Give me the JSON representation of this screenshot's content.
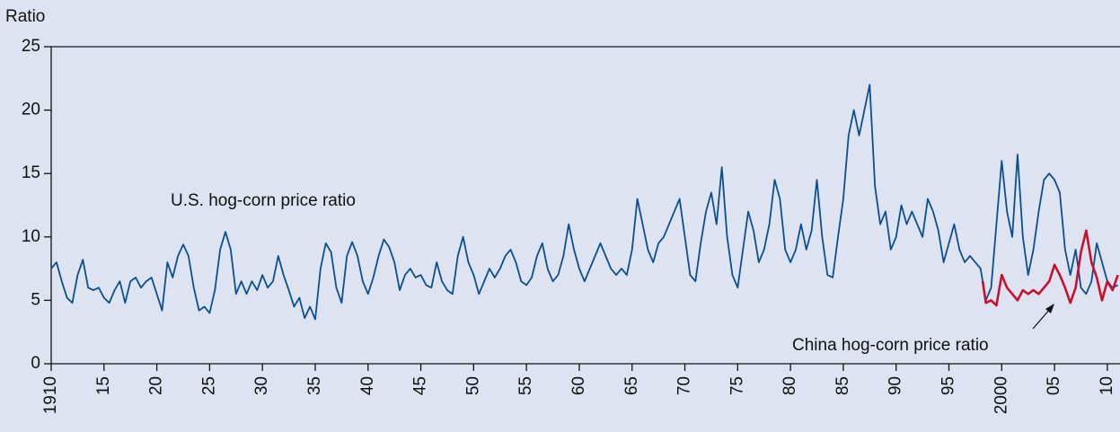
{
  "chart_data": {
    "type": "line",
    "y_label": "Ratio",
    "annotations": [
      "U.S. hog-corn price ratio",
      "China hog-corn price ratio"
    ],
    "xlim": [
      1910,
      2011.2
    ],
    "ylim": [
      0,
      25
    ],
    "yticks": [
      0,
      5,
      10,
      15,
      20,
      25
    ],
    "xticks": [
      1910,
      {
        "value": 1915,
        "label": "15"
      },
      {
        "value": 1920,
        "label": "20"
      },
      {
        "value": 1925,
        "label": "25"
      },
      {
        "value": 1930,
        "label": "30"
      },
      {
        "value": 1935,
        "label": "35"
      },
      {
        "value": 1940,
        "label": "40"
      },
      {
        "value": 1945,
        "label": "45"
      },
      {
        "value": 1950,
        "label": "50"
      },
      {
        "value": 1955,
        "label": "55"
      },
      {
        "value": 1960,
        "label": "60"
      },
      {
        "value": 1965,
        "label": "65"
      },
      {
        "value": 1970,
        "label": "70"
      },
      {
        "value": 1975,
        "label": "75"
      },
      {
        "value": 1980,
        "label": "80"
      },
      {
        "value": 1985,
        "label": "85"
      },
      {
        "value": 1990,
        "label": "90"
      },
      {
        "value": 1995,
        "label": "95"
      },
      2000,
      {
        "value": 2005,
        "label": "05"
      },
      {
        "value": 2010,
        "label": "10"
      }
    ],
    "grid": false,
    "series": [
      {
        "name": "U.S. hog-corn price ratio",
        "color": "#0b4f91",
        "x": [
          1910,
          1910.5,
          1911,
          1911.5,
          1912,
          1912.5,
          1913,
          1913.5,
          1914,
          1914.5,
          1915,
          1915.5,
          1916,
          1916.5,
          1917,
          1917.5,
          1918,
          1918.5,
          1919,
          1919.5,
          1920,
          1920.5,
          1921,
          1921.5,
          1922,
          1922.5,
          1923,
          1923.5,
          1924,
          1924.5,
          1925,
          1925.5,
          1926,
          1926.5,
          1927,
          1927.5,
          1928,
          1928.5,
          1929,
          1929.5,
          1930,
          1930.5,
          1931,
          1931.5,
          1932,
          1932.5,
          1933,
          1933.5,
          1934,
          1934.5,
          1935,
          1935.5,
          1936,
          1936.5,
          1937,
          1937.5,
          1938,
          1938.5,
          1939,
          1939.5,
          1940,
          1940.5,
          1941,
          1941.5,
          1942,
          1942.5,
          1943,
          1943.5,
          1944,
          1944.5,
          1945,
          1945.5,
          1946,
          1946.5,
          1947,
          1947.5,
          1948,
          1948.5,
          1949,
          1949.5,
          1950,
          1950.5,
          1951,
          1951.5,
          1952,
          1952.5,
          1953,
          1953.5,
          1954,
          1954.5,
          1955,
          1955.5,
          1956,
          1956.5,
          1957,
          1957.5,
          1958,
          1958.5,
          1959,
          1959.5,
          1960,
          1960.5,
          1961,
          1961.5,
          1962,
          1962.5,
          1963,
          1963.5,
          1964,
          1964.5,
          1965,
          1965.5,
          1966,
          1966.5,
          1967,
          1967.5,
          1968,
          1968.5,
          1969,
          1969.5,
          1970,
          1970.5,
          1971,
          1971.5,
          1972,
          1972.5,
          1973,
          1973.5,
          1974,
          1974.5,
          1975,
          1975.5,
          1976,
          1976.5,
          1977,
          1977.5,
          1978,
          1978.5,
          1979,
          1979.5,
          1980,
          1980.5,
          1981,
          1981.5,
          1982,
          1982.5,
          1983,
          1983.5,
          1984,
          1984.5,
          1985,
          1985.5,
          1986,
          1986.5,
          1987,
          1987.5,
          1988,
          1988.5,
          1989,
          1989.5,
          1990,
          1990.5,
          1991,
          1991.5,
          1992,
          1992.5,
          1993,
          1993.5,
          1994,
          1994.5,
          1995,
          1995.5,
          1996,
          1996.5,
          1997,
          1997.5,
          1998,
          1998.5,
          1999,
          1999.5,
          2000,
          2000.5,
          2001,
          2001.5,
          2002,
          2002.5,
          2003,
          2003.5,
          2004,
          2004.5,
          2005,
          2005.5,
          2006,
          2006.5,
          2007,
          2007.5,
          2008,
          2008.5,
          2009,
          2009.5,
          2010,
          2010.5,
          2011
        ],
        "values": [
          7.5,
          8,
          6.5,
          5.2,
          4.8,
          7,
          8.2,
          6,
          5.8,
          6,
          5.2,
          4.8,
          5.8,
          6.5,
          4.8,
          6.5,
          6.8,
          6,
          6.5,
          6.8,
          5.5,
          4.2,
          8,
          6.8,
          8.5,
          9.4,
          8.5,
          6,
          4.2,
          4.5,
          4,
          5.8,
          9,
          10.4,
          9,
          5.5,
          6.5,
          5.5,
          6.5,
          5.8,
          7,
          6,
          6.5,
          8.5,
          7,
          5.8,
          4.5,
          5.2,
          3.6,
          4.5,
          3.5,
          7.5,
          9.5,
          8.8,
          6,
          4.8,
          8.5,
          9.6,
          8.5,
          6.5,
          5.5,
          6.8,
          8.5,
          9.8,
          9.2,
          8,
          5.8,
          7,
          7.5,
          6.8,
          7,
          6.2,
          6,
          8,
          6.5,
          5.8,
          5.5,
          8.5,
          10,
          8,
          7,
          5.5,
          6.5,
          7.5,
          6.8,
          7.5,
          8.5,
          9,
          8,
          6.5,
          6.2,
          6.8,
          8.5,
          9.5,
          7.5,
          6.5,
          7,
          8.5,
          11,
          9,
          7.5,
          6.5,
          7.5,
          8.5,
          9.5,
          8.5,
          7.5,
          7,
          7.5,
          7,
          9,
          13,
          11,
          9,
          8,
          9.5,
          10,
          11,
          12,
          13,
          10,
          7,
          6.5,
          9.5,
          12,
          13.5,
          11,
          15.5,
          10,
          7,
          6,
          9,
          12,
          10.5,
          8,
          9,
          11,
          14.5,
          13,
          9,
          8,
          9,
          11,
          9,
          10.5,
          14.5,
          10,
          7,
          6.8,
          10,
          13,
          18,
          20,
          18,
          20,
          22,
          14,
          11,
          12,
          9,
          10,
          12.5,
          11,
          12,
          11,
          10,
          13,
          12,
          10.5,
          8,
          9.5,
          11,
          9,
          8,
          8.5,
          8,
          7.5,
          5,
          6,
          11,
          16,
          12,
          10,
          16.5,
          10,
          7,
          9,
          12,
          14.5,
          15,
          14.5,
          13.5,
          9,
          7,
          9,
          6,
          5.5,
          6.5,
          9.5,
          8,
          6.5,
          6,
          6.2
        ]
      },
      {
        "name": "China hog-corn price ratio",
        "color": "#c8102e",
        "x": [
          1998.2,
          1998.5,
          1999,
          1999.5,
          2000,
          2000.5,
          2001,
          2001.5,
          2002,
          2002.5,
          2003,
          2003.5,
          2004,
          2004.5,
          2005,
          2005.5,
          2006,
          2006.5,
          2007,
          2007.5,
          2008,
          2008.5,
          2009,
          2009.5,
          2010,
          2010.5,
          2011
        ],
        "values": [
          6.5,
          4.8,
          5,
          4.6,
          7,
          6,
          5.5,
          5,
          5.8,
          5.5,
          5.8,
          5.5,
          6,
          6.5,
          7.8,
          7,
          6,
          4.8,
          6,
          8.8,
          10.5,
          8,
          6.8,
          5,
          6.5,
          5.8,
          7
        ]
      }
    ]
  }
}
